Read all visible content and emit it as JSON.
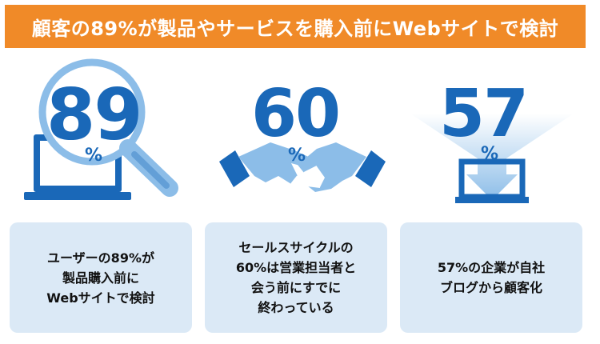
{
  "header": {
    "title": "顧客の89%が製品やサービスを購入前にWebサイトで検討"
  },
  "stats": [
    {
      "value": "89",
      "unit": "%",
      "icon": "magnifier-laptop-icon",
      "lines": [
        "ユーザーの89%が",
        "製品購入前に",
        "Webサイトで検討"
      ]
    },
    {
      "value": "60",
      "unit": "%",
      "icon": "handshake-icon",
      "lines": [
        "セールスサイクルの",
        "60%は営業担当者と",
        "会う前にすでに",
        "終わっている"
      ]
    },
    {
      "value": "57",
      "unit": "%",
      "icon": "funnel-monitor-icon",
      "lines": [
        "57%の企業が自社",
        "ブログから顧客化"
      ]
    }
  ],
  "colors": {
    "banner": "#f08a28",
    "accent": "#1a68b8",
    "card": "#dbe9f6",
    "light_blue": "#8cbde8"
  }
}
